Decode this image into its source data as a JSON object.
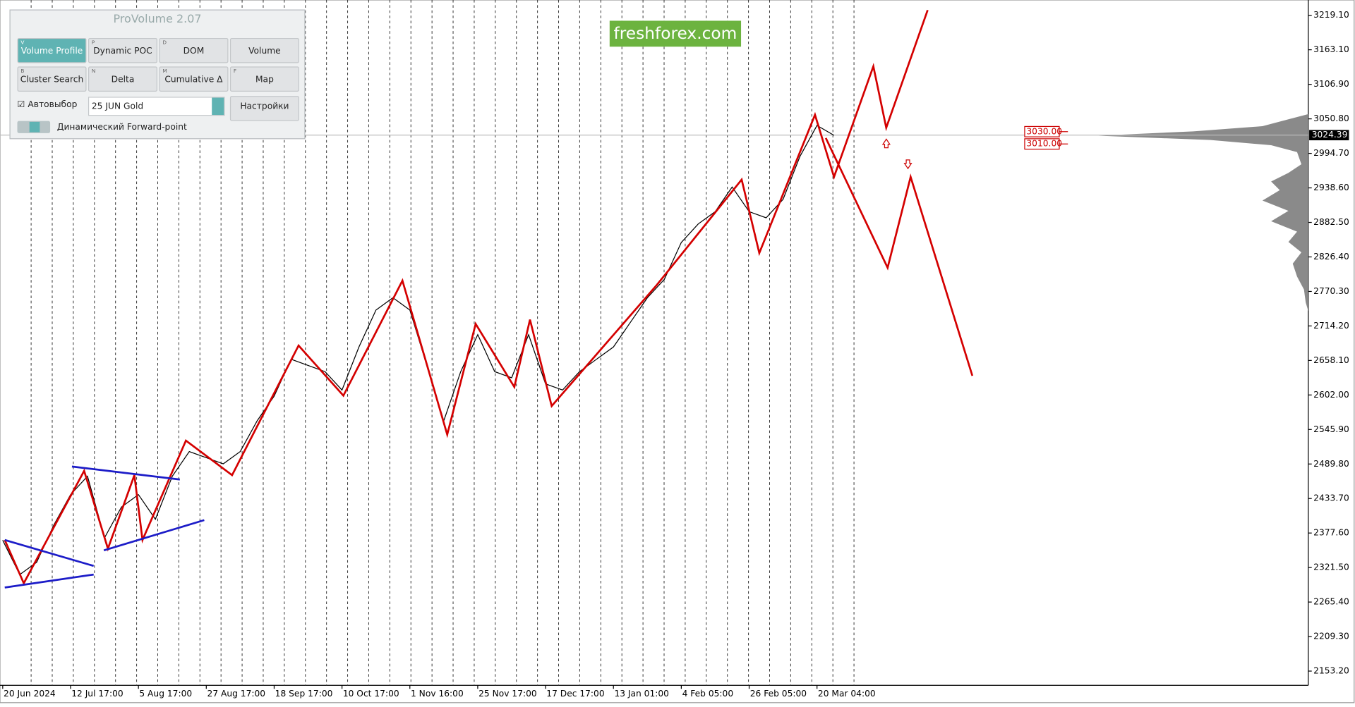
{
  "chart_data": {
    "type": "line",
    "xlim": [
      -0.04,
      19.24
    ],
    "ylim": [
      2130,
      3244
    ],
    "xticks": [
      {
        "value": 0,
        "label": "20 Jun 2024"
      },
      {
        "value": 1,
        "label": "12 Jul 17:00"
      },
      {
        "value": 2,
        "label": "5 Aug 17:00"
      },
      {
        "value": 3,
        "label": "27 Aug 17:00"
      },
      {
        "value": 4,
        "label": "18 Sep 17:00"
      },
      {
        "value": 5,
        "label": "10 Oct 17:00"
      },
      {
        "value": 6,
        "label": "1 Nov 16:00"
      },
      {
        "value": 7,
        "label": "25 Nov 17:00"
      },
      {
        "value": 8,
        "label": "17 Dec 17:00"
      },
      {
        "value": 9,
        "label": "13 Jan 01:00"
      },
      {
        "value": 10,
        "label": "4 Feb 05:00"
      },
      {
        "value": 11,
        "label": "26 Feb 05:00"
      },
      {
        "value": 12,
        "label": "20 Mar 04:00"
      }
    ],
    "yticks": [
      {
        "value": 3219.1,
        "label": "3219.10"
      },
      {
        "value": 3163.1,
        "label": "3163.10"
      },
      {
        "value": 3106.9,
        "label": "3106.90"
      },
      {
        "value": 3050.8,
        "label": "3050.80"
      },
      {
        "value": 2994.7,
        "label": "2994.70"
      },
      {
        "value": 2938.6,
        "label": "2938.60"
      },
      {
        "value": 2882.5,
        "label": "2882.50"
      },
      {
        "value": 2826.4,
        "label": "2826.40"
      },
      {
        "value": 2770.3,
        "label": "2770.30"
      },
      {
        "value": 2714.2,
        "label": "2714.20"
      },
      {
        "value": 2658.1,
        "label": "2658.10"
      },
      {
        "value": 2602,
        "label": "2602.00"
      },
      {
        "value": 2545.9,
        "label": "2545.90"
      },
      {
        "value": 2489.8,
        "label": "2489.80"
      },
      {
        "value": 2433.7,
        "label": "2433.70"
      },
      {
        "value": 2377.6,
        "label": "2377.60"
      },
      {
        "value": 2321.5,
        "label": "2321.50"
      },
      {
        "value": 2265.4,
        "label": "2265.40"
      },
      {
        "value": 2209.3,
        "label": "2209.30"
      },
      {
        "value": 2153.2,
        "label": "2153.20"
      }
    ],
    "current_price": 3024.39,
    "levels": [
      {
        "value": 3030,
        "label": "3030.00"
      },
      {
        "value": 3010,
        "label": "3010.00"
      }
    ],
    "series": [
      {
        "color": "#000000",
        "x": [
          0,
          0.25,
          0.5,
          0.75,
          1,
          1.25,
          1.5,
          1.75,
          2,
          2.25,
          2.5,
          2.75,
          3,
          3.25,
          3.5,
          3.75,
          4,
          4.25,
          4.5,
          4.75,
          5,
          5.25,
          5.5,
          5.75,
          6,
          6.25,
          6.5,
          6.75,
          7,
          7.25,
          7.5,
          7.75,
          8,
          8.25,
          8.5,
          8.75,
          9,
          9.25,
          9.5,
          9.75,
          10,
          10.25,
          10.5,
          10.75,
          11,
          11.25,
          11.5,
          11.75,
          12,
          12.25
        ],
        "values": [
          2366,
          2310,
          2330,
          2390,
          2440,
          2470,
          2370,
          2420,
          2440,
          2400,
          2470,
          2510,
          2500,
          2490,
          2510,
          2560,
          2600,
          2660,
          2650,
          2640,
          2610,
          2680,
          2740,
          2760,
          2740,
          2650,
          2560,
          2640,
          2700,
          2640,
          2630,
          2700,
          2620,
          2610,
          2640,
          2660,
          2680,
          2720,
          2760,
          2790,
          2850,
          2880,
          2900,
          2940,
          2900,
          2890,
          2920,
          2990,
          3040,
          3024
        ]
      },
      {
        "color": "#d40000",
        "x": [
          0.03,
          0.31,
          1.2,
          1.55,
          1.94,
          2.06,
          2.7,
          3.38,
          4.36,
          5.02,
          5.89,
          6.55,
          6.97,
          7.54,
          7.77,
          8.09,
          9.64,
          10.89,
          11.15,
          11.97,
          12.25,
          12.83,
          13.02,
          13.63
        ],
        "values": [
          2366.3,
          2296,
          2478.7,
          2352.2,
          2471.6,
          2366.3,
          2527.8,
          2471.6,
          2682.4,
          2600.9,
          2787.8,
          2537.7,
          2717.5,
          2615,
          2724.5,
          2584,
          2780.8,
          2952.1,
          2832.7,
          3057.5,
          2956.4,
          3136.2,
          3036.4,
          3227.5
        ]
      },
      {
        "color": "#d40000",
        "x": [
          12.13,
          13.04,
          13.38,
          14.29
        ],
        "values": [
          3019.6,
          2808.8,
          2956.4,
          2633.2
        ]
      },
      {
        "color": "#1c1cc8",
        "x": [
          0.03,
          1.34
        ],
        "values": [
          2366.3,
          2324.1
        ]
      },
      {
        "color": "#1c1cc8",
        "x": [
          0.03,
          1.34
        ],
        "values": [
          2289,
          2310.1
        ]
      },
      {
        "color": "#1c1cc8",
        "x": [
          1.02,
          2.61
        ],
        "values": [
          2485.7,
          2464.6
        ]
      },
      {
        "color": "#1c1cc8",
        "x": [
          1.49,
          2.97
        ],
        "values": [
          2349.4,
          2398.6
        ]
      }
    ]
  },
  "logo": "freshforex.com",
  "panel": {
    "title": "ProVolume 2.07",
    "buttons": [
      {
        "key": "V",
        "label": "Volume Profile"
      },
      {
        "key": "P",
        "label": "Dynamic POC"
      },
      {
        "key": "D",
        "label": "DOM"
      },
      {
        "key": "",
        "label": "Volume"
      },
      {
        "key": "B",
        "label": "Cluster Search"
      },
      {
        "key": "N",
        "label": "Delta"
      },
      {
        "key": "M",
        "label": "Cumulative Δ"
      },
      {
        "key": "F",
        "label": "Map"
      }
    ],
    "auto_select": "Автовыбор",
    "instrument": "25 JUN Gold",
    "settings": "Настройки",
    "forward_point": "Динамический Forward-point"
  }
}
